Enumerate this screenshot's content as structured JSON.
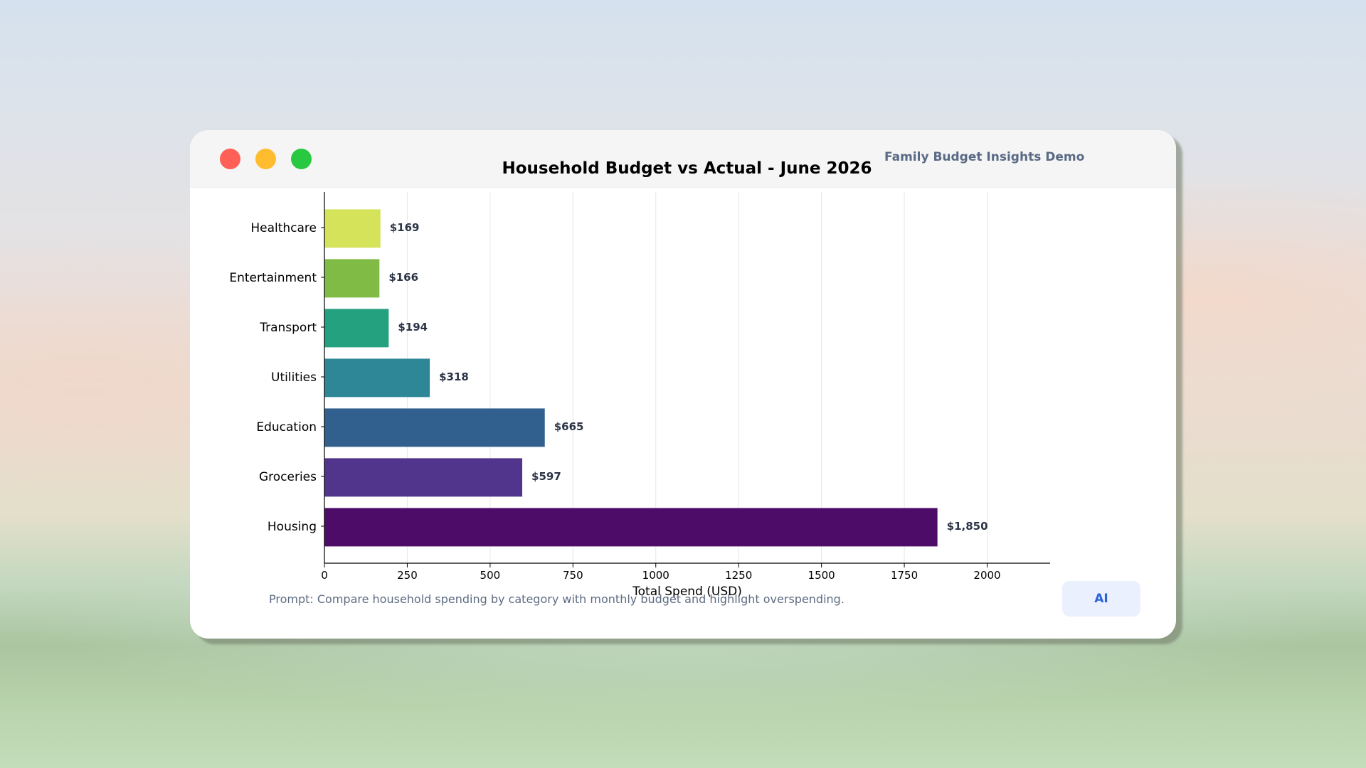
{
  "window": {
    "app_title": "Family Budget Insights Demo",
    "prompt": "Prompt: Compare household spending by category with monthly budget and highlight overspending.",
    "ai_button_label": "AI"
  },
  "chart_data": {
    "type": "bar",
    "orientation": "horizontal",
    "title": "Household Budget vs Actual - June 2026",
    "xlabel": "Total Spend (USD)",
    "ylabel": "",
    "categories": [
      "Housing",
      "Groceries",
      "Education",
      "Utilities",
      "Transport",
      "Entertainment",
      "Healthcare"
    ],
    "values": [
      1850,
      597,
      665,
      318,
      194,
      166,
      169
    ],
    "value_labels": [
      "$1,850",
      "$597",
      "$665",
      "$318",
      "$194",
      "$166",
      "$169"
    ],
    "colors": [
      "#4c0c67",
      "#51348c",
      "#31608f",
      "#2e8797",
      "#24a17f",
      "#80bb45",
      "#d4e35a"
    ],
    "xlim": [
      0,
      2190
    ],
    "xticks": [
      0,
      250,
      500,
      750,
      1000,
      1250,
      1500,
      1750,
      2000
    ],
    "grid": "vertical",
    "legend": "none"
  }
}
